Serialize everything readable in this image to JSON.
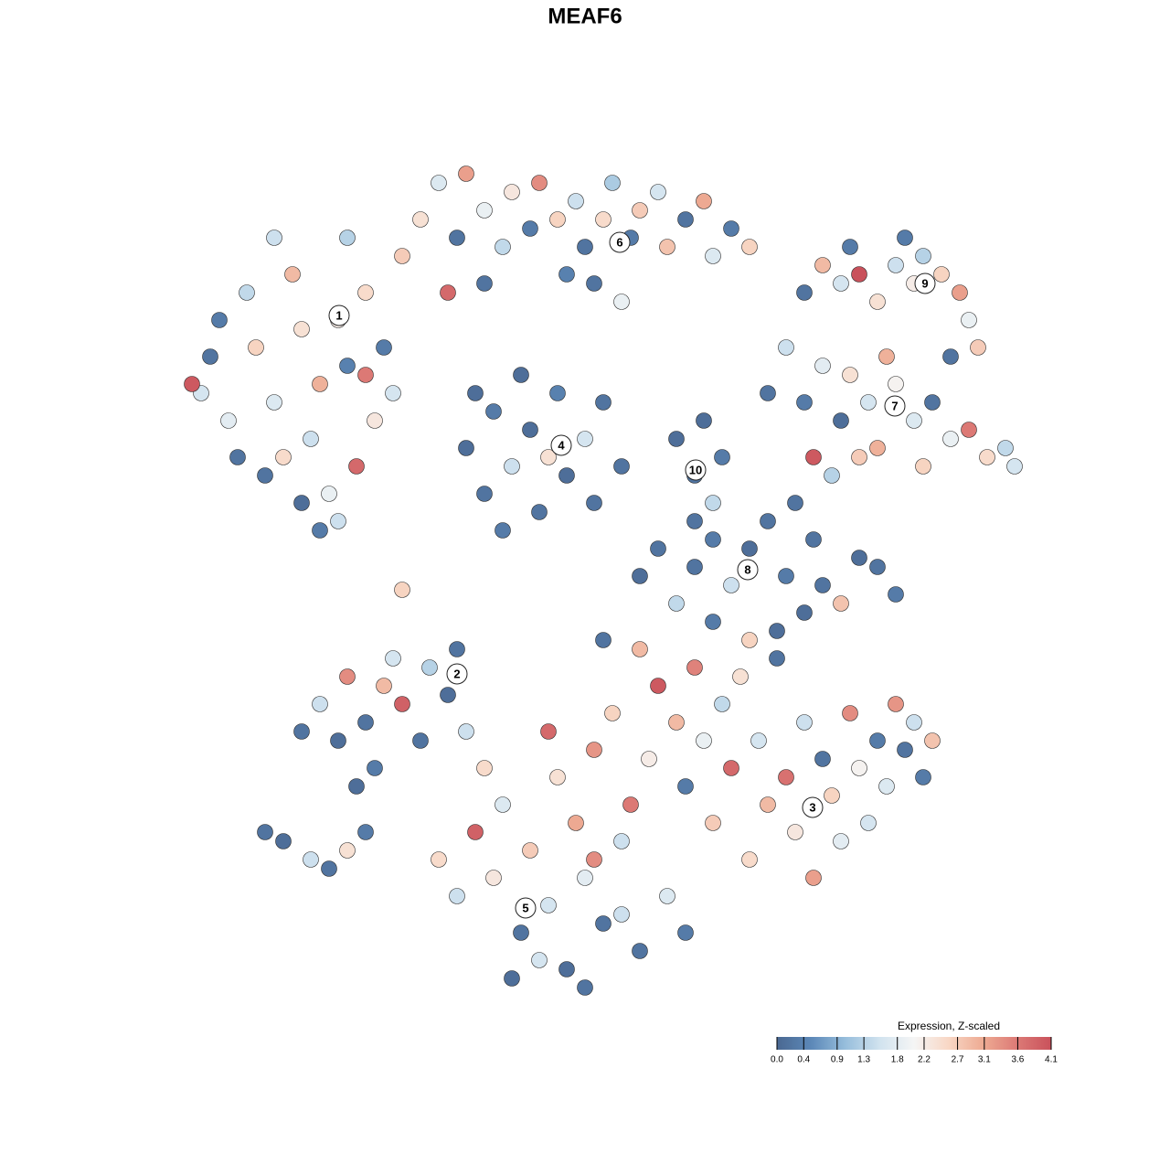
{
  "chart_data": {
    "type": "scatter",
    "title": "MEAF6",
    "xlim": [
      0,
      93
    ],
    "ylim": [
      0,
      92
    ],
    "x": [
      2,
      3,
      5,
      4,
      1,
      7,
      8,
      10,
      9,
      12,
      13,
      15,
      14,
      17,
      18,
      16,
      20,
      21,
      19,
      22,
      23,
      24,
      13,
      15,
      17,
      11,
      6,
      20,
      18,
      10,
      26,
      28,
      30,
      31,
      33,
      35,
      36,
      38,
      39,
      41,
      43,
      44,
      46,
      47,
      49,
      50,
      52,
      53,
      55,
      57,
      58,
      60,
      62,
      33,
      29,
      45,
      48,
      42,
      31,
      33,
      34,
      36,
      38,
      39,
      41,
      42,
      44,
      45,
      37,
      35,
      46,
      40,
      32,
      48,
      54,
      56,
      57,
      58,
      56,
      59,
      64,
      66,
      68,
      70,
      72,
      73,
      75,
      76,
      78,
      80,
      82,
      84,
      86,
      88,
      90,
      91,
      69,
      71,
      67,
      74,
      77,
      81,
      68,
      70,
      72,
      73,
      74,
      76,
      78,
      80,
      81,
      83,
      85,
      86,
      87,
      84,
      79,
      50,
      52,
      54,
      56,
      58,
      60,
      62,
      64,
      66,
      68,
      70,
      72,
      74,
      76,
      78,
      65,
      69,
      13,
      15,
      17,
      18,
      20,
      21,
      23,
      24,
      26,
      27,
      29,
      30,
      31,
      19,
      22,
      9,
      11,
      14,
      16,
      18,
      20,
      28,
      30,
      32,
      34,
      35,
      37,
      38,
      40,
      41,
      42,
      43,
      44,
      45,
      46,
      47,
      48,
      49,
      50,
      51,
      52,
      53,
      54,
      55,
      56,
      57,
      58,
      59,
      60,
      61,
      62,
      63,
      64,
      65,
      66,
      67,
      68,
      69,
      70,
      71,
      72,
      73,
      74,
      75,
      76,
      77,
      78,
      79,
      80,
      81,
      82,
      36,
      39,
      44,
      48,
      55,
      33,
      40,
      46,
      58,
      62,
      50,
      45,
      24
    ],
    "y": [
      67,
      71,
      64,
      75,
      68,
      78,
      72,
      66,
      58,
      80,
      74,
      68,
      62,
      75,
      70,
      56,
      78,
      64,
      59,
      72,
      67,
      82,
      55,
      52,
      53,
      60,
      60,
      69,
      84,
      84,
      86,
      90,
      84,
      91,
      87,
      83,
      89,
      85,
      90,
      86,
      88,
      83,
      86,
      90,
      84,
      87,
      89,
      83,
      86,
      88,
      82,
      85,
      83,
      79,
      78,
      79,
      77,
      80,
      61,
      56,
      65,
      59,
      63,
      54,
      67,
      58,
      62,
      55,
      69,
      52,
      66,
      60,
      67,
      59,
      62,
      58,
      64,
      55,
      53,
      60,
      67,
      72,
      66,
      70,
      64,
      69,
      66,
      61,
      68,
      64,
      66,
      62,
      63,
      60,
      61,
      59,
      60,
      58,
      55,
      60,
      71,
      59,
      78,
      81,
      79,
      83,
      80,
      77,
      81,
      79,
      82,
      80,
      78,
      75,
      72,
      71,
      84,
      47,
      50,
      44,
      48,
      51,
      46,
      50,
      53,
      47,
      43,
      46,
      44,
      49,
      48,
      45,
      41,
      51,
      30,
      33,
      29,
      36,
      31,
      26,
      38,
      33,
      29,
      37,
      34,
      39,
      30,
      24,
      35,
      19,
      18,
      16,
      15,
      17,
      19,
      16,
      12,
      19,
      14,
      22,
      8,
      17,
      11,
      25,
      4,
      20,
      14,
      28,
      9,
      32,
      18,
      22,
      6,
      27,
      35,
      12,
      31,
      24,
      37,
      29,
      20,
      33,
      26,
      36,
      16,
      29,
      22,
      38,
      25,
      19,
      31,
      14,
      27,
      23,
      18,
      32,
      26,
      20,
      29,
      24,
      33,
      28,
      31,
      25,
      29,
      3,
      5,
      2,
      10,
      8,
      26,
      30,
      40,
      42,
      40,
      39,
      16,
      45.5
    ],
    "values": [
      1.6,
      0.2,
      1.8,
      0.3,
      4.0,
      1.4,
      2.6,
      1.7,
      0.2,
      2.9,
      2.4,
      3.0,
      1.5,
      2.2,
      0.4,
      1.9,
      2.5,
      2.3,
      3.8,
      0.3,
      1.6,
      2.7,
      0.1,
      0.3,
      1.5,
      2.5,
      0.2,
      3.6,
      1.3,
      1.5,
      2.4,
      1.7,
      0.2,
      3.2,
      1.9,
      1.4,
      2.3,
      0.3,
      3.4,
      2.6,
      1.5,
      0.2,
      2.5,
      1.2,
      0.3,
      2.7,
      1.6,
      2.8,
      0.2,
      3.1,
      1.7,
      0.3,
      2.6,
      0.2,
      3.8,
      0.2,
      1.9,
      0.4,
      0.1,
      0.2,
      0.3,
      1.5,
      0.1,
      0.2,
      0.4,
      0.1,
      1.6,
      0.2,
      0.1,
      0.3,
      0.2,
      2.4,
      0.1,
      0.2,
      0.1,
      0.2,
      0.1,
      1.4,
      0.2,
      0.3,
      0.2,
      1.5,
      0.3,
      1.8,
      0.1,
      2.4,
      1.6,
      3.0,
      2.1,
      1.7,
      0.2,
      1.9,
      3.6,
      2.5,
      1.4,
      1.6,
      4.0,
      1.3,
      0.2,
      2.7,
      3.0,
      2.6,
      0.2,
      2.9,
      1.6,
      0.3,
      4.1,
      2.4,
      1.5,
      2.2,
      1.3,
      2.6,
      3.2,
      1.9,
      2.7,
      0.2,
      0.3,
      0.1,
      0.2,
      1.4,
      0.2,
      0.3,
      1.5,
      0.1,
      0.2,
      0.3,
      0.1,
      0.2,
      2.8,
      0.1,
      0.2,
      0.3,
      0.1,
      0.2,
      0.2,
      1.5,
      0.1,
      3.4,
      0.2,
      0.3,
      1.6,
      3.9,
      0.2,
      1.3,
      0.1,
      0.2,
      1.5,
      0.1,
      2.9,
      0.2,
      0.1,
      1.5,
      0.2,
      2.4,
      0.3,
      2.5,
      1.5,
      3.9,
      2.3,
      1.7,
      0.2,
      2.7,
      1.6,
      2.4,
      0.1,
      3.1,
      1.8,
      3.3,
      0.2,
      2.6,
      1.5,
      3.6,
      0.2,
      2.2,
      4.0,
      1.7,
      2.9,
      0.3,
      3.5,
      1.9,
      2.7,
      1.4,
      3.8,
      2.4,
      2.5,
      1.6,
      2.9,
      0.2,
      3.7,
      2.3,
      1.5,
      3.2,
      0.2,
      2.6,
      1.8,
      3.4,
      2.1,
      1.6,
      0.3,
      1.7,
      3.3,
      0.2,
      1.5,
      0.3,
      2.8,
      0.1,
      1.6,
      0.2,
      1.5,
      0.3,
      2.5,
      3.8,
      0.2,
      0.3,
      2.6,
      2.9,
      3.4,
      2.6
    ],
    "clusters": [
      {
        "label": "1",
        "x": 17.1,
        "y": 75.5
      },
      {
        "label": "2",
        "x": 30,
        "y": 36.3
      },
      {
        "label": "3",
        "x": 68.9,
        "y": 21.7
      },
      {
        "label": "4",
        "x": 41.4,
        "y": 61.3
      },
      {
        "label": "5",
        "x": 37.5,
        "y": 10.7
      },
      {
        "label": "6",
        "x": 47.8,
        "y": 83.5
      },
      {
        "label": "7",
        "x": 77.9,
        "y": 65.6
      },
      {
        "label": "8",
        "x": 61.8,
        "y": 47.7
      },
      {
        "label": "9",
        "x": 81.2,
        "y": 79
      },
      {
        "label": "10",
        "x": 56.1,
        "y": 58.6
      }
    ],
    "colorbar": {
      "title": "Expression, Z-scaled",
      "clim": [
        0,
        4.1
      ],
      "colorscale": [
        "#4a6891",
        "#5c88b8",
        "#97bedc",
        "#d1e3ef",
        "#f5f5f5",
        "#f8d7c5",
        "#eeab93",
        "#dc7a76",
        "#c9515b"
      ],
      "ticks": [
        {
          "value": 0,
          "label": "0.0"
        },
        0.4,
        0.9,
        1.3,
        1.8,
        2.2,
        2.7,
        3.1,
        3.6,
        4.1
      ]
    }
  }
}
